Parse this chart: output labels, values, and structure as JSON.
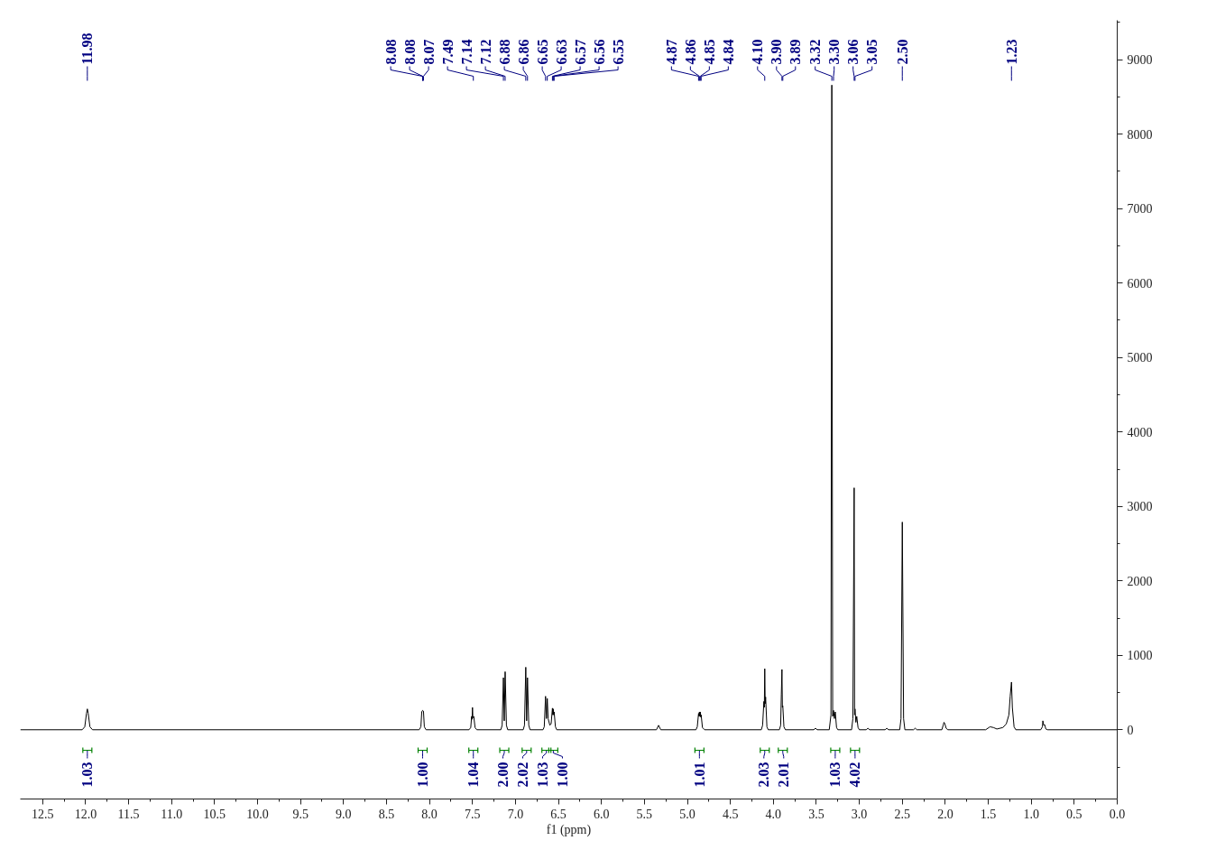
{
  "chart_data": {
    "type": "line",
    "xlabel": "f1 (ppm)",
    "xlim": [
      12.76,
      0
    ],
    "ylim": [
      -930,
      9530
    ],
    "xticks": [
      {
        "value": 0,
        "label": "0.0"
      },
      {
        "value": 0.25,
        "label": null
      },
      0.5,
      {
        "value": 0.75,
        "label": null
      },
      {
        "value": 1,
        "label": "1.0"
      },
      {
        "value": 1.25,
        "label": null
      },
      1.5,
      {
        "value": 1.75,
        "label": null
      },
      {
        "value": 2,
        "label": "2.0"
      },
      {
        "value": 2.25,
        "label": null
      },
      2.5,
      {
        "value": 2.75,
        "label": null
      },
      {
        "value": 3,
        "label": "3.0"
      },
      {
        "value": 3.25,
        "label": null
      },
      3.5,
      {
        "value": 3.75,
        "label": null
      },
      {
        "value": 4,
        "label": "4.0"
      },
      {
        "value": 4.25,
        "label": null
      },
      4.5,
      {
        "value": 4.75,
        "label": null
      },
      {
        "value": 5,
        "label": "5.0"
      },
      {
        "value": 5.25,
        "label": null
      },
      5.5,
      {
        "value": 5.75,
        "label": null
      },
      {
        "value": 6,
        "label": "6.0"
      },
      {
        "value": 6.25,
        "label": null
      },
      6.5,
      {
        "value": 6.75,
        "label": null
      },
      {
        "value": 7,
        "label": "7.0"
      },
      {
        "value": 7.25,
        "label": null
      },
      7.5,
      {
        "value": 7.75,
        "label": null
      },
      {
        "value": 8,
        "label": "8.0"
      },
      {
        "value": 8.25,
        "label": null
      },
      8.5,
      {
        "value": 8.75,
        "label": null
      },
      {
        "value": 9,
        "label": "9.0"
      },
      {
        "value": 9.25,
        "label": null
      },
      9.5,
      {
        "value": 9.75,
        "label": null
      },
      {
        "value": 10,
        "label": "10.0"
      },
      {
        "value": 10.25,
        "label": null
      },
      10.5,
      {
        "value": 10.75,
        "label": null
      },
      {
        "value": 11,
        "label": "11.0"
      },
      {
        "value": 11.25,
        "label": null
      },
      11.5,
      {
        "value": 11.75,
        "label": null
      },
      {
        "value": 12,
        "label": "12.0"
      },
      {
        "value": 12.25,
        "label": null
      },
      12.5
    ],
    "yticks": [
      {
        "value": -500,
        "label": null
      },
      0,
      {
        "value": 500,
        "label": null
      },
      1000,
      {
        "value": 1500,
        "label": null
      },
      2000,
      {
        "value": 2500,
        "label": null
      },
      3000,
      {
        "value": 3500,
        "label": null
      },
      4000,
      {
        "value": 4500,
        "label": null
      },
      5000,
      {
        "value": 5500,
        "label": null
      },
      6000,
      {
        "value": 6500,
        "label": null
      },
      7000,
      {
        "value": 7500,
        "label": null
      },
      8000,
      {
        "value": 8500,
        "label": null
      },
      9000,
      {
        "value": 9500,
        "label": null
      }
    ],
    "x": [
      12.76,
      12.04,
      12.01,
      11.99,
      11.98,
      11.97,
      11.95,
      11.92,
      8.12,
      8.1,
      8.09,
      8.08,
      8.07,
      8.06,
      8.04,
      7.54,
      7.52,
      7.51,
      7.505,
      7.5,
      7.495,
      7.485,
      7.47,
      7.45,
      7.17,
      7.155,
      7.14,
      7.13,
      7.12,
      7.105,
      7.09,
      6.91,
      6.895,
      6.88,
      6.87,
      6.86,
      6.845,
      6.83,
      6.68,
      6.665,
      6.65,
      6.64,
      6.63,
      6.62,
      6.6,
      6.585,
      6.57,
      6.565,
      6.56,
      6.555,
      6.55,
      6.535,
      6.52,
      5.36,
      5.335,
      5.31,
      4.9,
      4.885,
      4.87,
      4.865,
      4.86,
      4.855,
      4.85,
      4.845,
      4.84,
      4.825,
      4.8,
      4.14,
      4.125,
      4.11,
      4.105,
      4.1,
      4.095,
      4.09,
      4.075,
      4.06,
      3.93,
      3.915,
      3.907,
      3.9,
      3.895,
      3.89,
      3.877,
      3.86,
      3.53,
      3.51,
      3.49,
      3.35,
      3.33,
      3.32,
      3.31,
      3.3,
      3.29,
      3.28,
      3.265,
      3.25,
      3.09,
      3.075,
      3.06,
      3.055,
      3.05,
      3.04,
      3.03,
      3.015,
      3.0,
      2.92,
      2.9,
      2.88,
      2.7,
      2.68,
      2.66,
      2.53,
      2.515,
      2.5,
      2.485,
      2.47,
      2.37,
      2.35,
      2.33,
      2.04,
      2.025,
      2.015,
      2.005,
      1.99,
      1.97,
      1.53,
      1.48,
      1.44,
      1.4,
      1.33,
      1.29,
      1.26,
      1.245,
      1.23,
      1.22,
      1.2,
      1.18,
      0.89,
      0.87,
      0.865,
      0.855,
      0.845,
      0.83,
      0.81,
      0.0
    ],
    "series": [
      {
        "color": "#000000",
        "values": [
          0,
          0,
          40,
          220,
          280,
          220,
          40,
          0,
          0,
          40,
          240,
          260,
          250,
          40,
          0,
          0,
          30,
          180,
          140,
          300,
          160,
          180,
          30,
          0,
          0,
          60,
          700,
          120,
          780,
          60,
          0,
          0,
          60,
          840,
          120,
          700,
          60,
          0,
          0,
          40,
          450,
          150,
          420,
          150,
          60,
          80,
          290,
          200,
          280,
          200,
          240,
          40,
          0,
          0,
          60,
          0,
          0,
          40,
          220,
          180,
          240,
          180,
          240,
          170,
          200,
          30,
          0,
          0,
          60,
          380,
          300,
          820,
          350,
          440,
          40,
          0,
          0,
          60,
          480,
          810,
          300,
          320,
          40,
          0,
          0,
          20,
          0,
          0,
          200,
          8660,
          180,
          260,
          150,
          240,
          30,
          0,
          0,
          150,
          3250,
          200,
          280,
          100,
          180,
          30,
          0,
          0,
          20,
          0,
          0,
          20,
          0,
          0,
          150,
          2790,
          150,
          0,
          0,
          20,
          0,
          0,
          60,
          100,
          80,
          20,
          0,
          0,
          40,
          30,
          10,
          30,
          80,
          200,
          450,
          640,
          300,
          40,
          0,
          0,
          40,
          120,
          60,
          70,
          10,
          0,
          0
        ]
      }
    ],
    "annotations": [
      {
        "text": "11.98",
        "x": 11.98
      },
      {
        "text": "8.08",
        "x": 8.08
      },
      {
        "text": "8.08",
        "x": 8.08
      },
      {
        "text": "8.07",
        "x": 8.07
      },
      {
        "text": "7.49",
        "x": 7.49
      },
      {
        "text": "7.14",
        "x": 7.14
      },
      {
        "text": "7.12",
        "x": 7.12
      },
      {
        "text": "6.88",
        "x": 6.88
      },
      {
        "text": "6.86",
        "x": 6.86
      },
      {
        "text": "6.65",
        "x": 6.65
      },
      {
        "text": "6.63",
        "x": 6.63
      },
      {
        "text": "6.57",
        "x": 6.57
      },
      {
        "text": "6.56",
        "x": 6.56
      },
      {
        "text": "6.55",
        "x": 6.55
      },
      {
        "text": "4.87",
        "x": 4.87
      },
      {
        "text": "4.86",
        "x": 4.86
      },
      {
        "text": "4.85",
        "x": 4.85
      },
      {
        "text": "4.84",
        "x": 4.84
      },
      {
        "text": "4.10",
        "x": 4.1
      },
      {
        "text": "3.90",
        "x": 3.9
      },
      {
        "text": "3.89",
        "x": 3.89
      },
      {
        "text": "3.32",
        "x": 3.32
      },
      {
        "text": "3.30",
        "x": 3.3
      },
      {
        "text": "3.06",
        "x": 3.06
      },
      {
        "text": "3.05",
        "x": 3.05
      },
      {
        "text": "2.50",
        "x": 2.5
      },
      {
        "text": "1.23",
        "x": 1.23
      },
      {
        "text": "1.03",
        "x": 11.98
      },
      {
        "text": "1.00",
        "x": 8.08
      },
      {
        "text": "1.04",
        "x": 7.49
      },
      {
        "text": "2.00",
        "x": 7.13
      },
      {
        "text": "2.02",
        "x": 6.87
      },
      {
        "text": "1.03",
        "x": 6.64
      },
      {
        "text": "1.00",
        "x": 6.56
      },
      {
        "text": "1.01",
        "x": 4.86
      },
      {
        "text": "2.03",
        "x": 4.1
      },
      {
        "text": "2.01",
        "x": 3.89
      },
      {
        "text": "1.03",
        "x": 3.28
      },
      {
        "text": "4.02",
        "x": 3.05
      }
    ]
  }
}
